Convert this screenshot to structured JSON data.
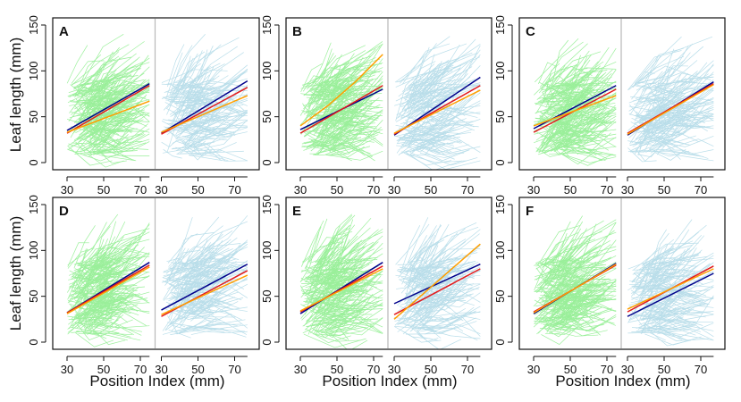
{
  "figure": {
    "y_axis_label": "Leaf length (mm)",
    "x_axis_label": "Position Index (mm)"
  },
  "colors": {
    "group1_fill": "#90ee90",
    "group2_fill": "#add8e6",
    "navy": "#00008b",
    "red": "#e31a1c",
    "orange": "#ff9f00"
  },
  "chart_data": [
    {
      "panel": "A",
      "type": "line",
      "xlim": [
        30,
        75
      ],
      "ylim": [
        0,
        150
      ],
      "xticks": [
        30,
        50,
        70
      ],
      "yticks": [
        0,
        50,
        100,
        150
      ],
      "groups": [
        {
          "name": "green",
          "fill": "#90ee90",
          "lines": [
            {
              "color": "navy",
              "x": [
                30,
                75
              ],
              "y": [
                35,
                86
              ]
            },
            {
              "color": "red",
              "x": [
                30,
                75
              ],
              "y": [
                32,
                84
              ]
            },
            {
              "color": "orange",
              "x": [
                30,
                75
              ],
              "y": [
                33,
                67
              ]
            }
          ]
        },
        {
          "name": "blue",
          "fill": "#add8e6",
          "lines": [
            {
              "color": "navy",
              "x": [
                30,
                77
              ],
              "y": [
                32,
                89
              ]
            },
            {
              "color": "red",
              "x": [
                30,
                77
              ],
              "y": [
                31,
                82
              ]
            },
            {
              "color": "orange",
              "x": [
                30,
                77
              ],
              "y": [
                33,
                73
              ]
            }
          ]
        }
      ]
    },
    {
      "panel": "B",
      "type": "line",
      "xlim": [
        30,
        75
      ],
      "ylim": [
        0,
        150
      ],
      "xticks": [
        30,
        50,
        70
      ],
      "yticks": [
        0,
        50,
        100,
        150
      ],
      "groups": [
        {
          "name": "green",
          "fill": "#90ee90",
          "lines": [
            {
              "color": "navy",
              "x": [
                30,
                75
              ],
              "y": [
                36,
                80
              ]
            },
            {
              "color": "red",
              "x": [
                30,
                75
              ],
              "y": [
                32,
                84
              ]
            },
            {
              "color": "orange",
              "x": [
                30,
                45,
                60,
                75
              ],
              "y": [
                40,
                62,
                88,
                118
              ]
            }
          ]
        },
        {
          "name": "blue",
          "fill": "#add8e6",
          "lines": [
            {
              "color": "navy",
              "x": [
                30,
                77
              ],
              "y": [
                30,
                93
              ]
            },
            {
              "color": "red",
              "x": [
                30,
                77
              ],
              "y": [
                31,
                84
              ]
            },
            {
              "color": "orange",
              "x": [
                30,
                77
              ],
              "y": [
                32,
                79
              ]
            }
          ]
        }
      ]
    },
    {
      "panel": "C",
      "type": "line",
      "xlim": [
        30,
        75
      ],
      "ylim": [
        0,
        150
      ],
      "xticks": [
        30,
        50,
        70
      ],
      "yticks": [
        0,
        50,
        100,
        150
      ],
      "groups": [
        {
          "name": "green",
          "fill": "#90ee90",
          "lines": [
            {
              "color": "navy",
              "x": [
                30,
                75
              ],
              "y": [
                37,
                84
              ]
            },
            {
              "color": "red",
              "x": [
                30,
                75
              ],
              "y": [
                33,
                80
              ]
            },
            {
              "color": "orange",
              "x": [
                30,
                75
              ],
              "y": [
                40,
                73
              ]
            }
          ]
        },
        {
          "name": "blue",
          "fill": "#add8e6",
          "lines": [
            {
              "color": "navy",
              "x": [
                30,
                77
              ],
              "y": [
                30,
                88
              ]
            },
            {
              "color": "red",
              "x": [
                30,
                77
              ],
              "y": [
                32,
                86
              ]
            },
            {
              "color": "orange",
              "x": [
                30,
                77
              ],
              "y": [
                31,
                85
              ]
            }
          ]
        }
      ]
    },
    {
      "panel": "D",
      "type": "line",
      "xlim": [
        30,
        75
      ],
      "ylim": [
        0,
        150
      ],
      "xticks": [
        30,
        50,
        70
      ],
      "yticks": [
        0,
        50,
        100,
        150
      ],
      "groups": [
        {
          "name": "green",
          "fill": "#90ee90",
          "lines": [
            {
              "color": "navy",
              "x": [
                30,
                75
              ],
              "y": [
                32,
                87
              ]
            },
            {
              "color": "red",
              "x": [
                30,
                75
              ],
              "y": [
                32,
                84
              ]
            },
            {
              "color": "orange",
              "x": [
                30,
                75
              ],
              "y": [
                31,
                82
              ]
            }
          ]
        },
        {
          "name": "blue",
          "fill": "#add8e6",
          "lines": [
            {
              "color": "navy",
              "x": [
                30,
                77
              ],
              "y": [
                35,
                85
              ]
            },
            {
              "color": "red",
              "x": [
                30,
                77
              ],
              "y": [
                28,
                78
              ]
            },
            {
              "color": "orange",
              "x": [
                30,
                77
              ],
              "y": [
                30,
                73
              ]
            }
          ]
        }
      ]
    },
    {
      "panel": "E",
      "type": "line",
      "xlim": [
        30,
        75
      ],
      "ylim": [
        0,
        150
      ],
      "xticks": [
        30,
        50,
        70
      ],
      "yticks": [
        0,
        50,
        100,
        150
      ],
      "groups": [
        {
          "name": "green",
          "fill": "#90ee90",
          "lines": [
            {
              "color": "navy",
              "x": [
                30,
                75
              ],
              "y": [
                31,
                87
              ]
            },
            {
              "color": "red",
              "x": [
                30,
                75
              ],
              "y": [
                33,
                83
              ]
            },
            {
              "color": "orange",
              "x": [
                30,
                75
              ],
              "y": [
                34,
                80
              ]
            }
          ]
        },
        {
          "name": "blue",
          "fill": "#add8e6",
          "lines": [
            {
              "color": "navy",
              "x": [
                30,
                77
              ],
              "y": [
                42,
                85
              ]
            },
            {
              "color": "red",
              "x": [
                30,
                77
              ],
              "y": [
                30,
                80
              ]
            },
            {
              "color": "orange",
              "x": [
                30,
                77
              ],
              "y": [
                25,
                107
              ]
            }
          ]
        }
      ]
    },
    {
      "panel": "F",
      "type": "line",
      "xlim": [
        30,
        75
      ],
      "ylim": [
        0,
        150
      ],
      "xticks": [
        30,
        50,
        70
      ],
      "yticks": [
        0,
        50,
        100,
        150
      ],
      "groups": [
        {
          "name": "green",
          "fill": "#90ee90",
          "lines": [
            {
              "color": "navy",
              "x": [
                30,
                75
              ],
              "y": [
                31,
                86
              ]
            },
            {
              "color": "red",
              "x": [
                30,
                75
              ],
              "y": [
                33,
                84
              ]
            },
            {
              "color": "orange",
              "x": [
                30,
                75
              ],
              "y": [
                32,
                85
              ]
            }
          ]
        },
        {
          "name": "blue",
          "fill": "#add8e6",
          "lines": [
            {
              "color": "navy",
              "x": [
                30,
                77
              ],
              "y": [
                28,
                75
              ]
            },
            {
              "color": "red",
              "x": [
                30,
                77
              ],
              "y": [
                33,
                83
              ]
            },
            {
              "color": "orange",
              "x": [
                30,
                77
              ],
              "y": [
                36,
                80
              ]
            }
          ]
        }
      ]
    }
  ]
}
